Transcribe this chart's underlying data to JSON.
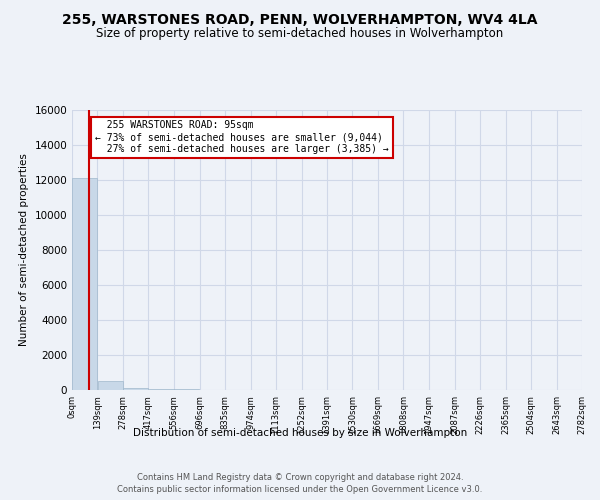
{
  "title": "255, WARSTONES ROAD, PENN, WOLVERHAMPTON, WV4 4LA",
  "subtitle": "Size of property relative to semi-detached houses in Wolverhampton",
  "xlabel_dist": "Distribution of semi-detached houses by size in Wolverhampton",
  "ylabel": "Number of semi-detached properties",
  "footer1": "Contains HM Land Registry data © Crown copyright and database right 2024.",
  "footer2": "Contains public sector information licensed under the Open Government Licence v3.0.",
  "bar_edges": [
    0,
    139,
    278,
    417,
    556,
    696,
    835,
    974,
    1113,
    1252,
    1391,
    1530,
    1669,
    1808,
    1947,
    2087,
    2226,
    2365,
    2504,
    2643,
    2782
  ],
  "bar_heights": [
    12100,
    500,
    90,
    50,
    30,
    20,
    15,
    10,
    8,
    6,
    5,
    4,
    3,
    2,
    2,
    1,
    1,
    1,
    1,
    1
  ],
  "bar_color": "#c8d8e8",
  "bar_edge_color": "#a0b8cc",
  "grid_color": "#d0d8e8",
  "background_color": "#eef2f8",
  "property_size": 95,
  "property_label": "255 WARSTONES ROAD: 95sqm",
  "pct_smaller": 73,
  "pct_smaller_n": 9044,
  "pct_larger": 27,
  "pct_larger_n": 3385,
  "red_line_color": "#cc0000",
  "annotation_box_color": "#cc0000",
  "ylim": [
    0,
    16000
  ],
  "yticks": [
    0,
    2000,
    4000,
    6000,
    8000,
    10000,
    12000,
    14000,
    16000
  ],
  "title_fontsize": 10,
  "subtitle_fontsize": 8.5,
  "footer_fontsize": 6.0,
  "tick_labels": [
    "0sqm",
    "139sqm",
    "278sqm",
    "417sqm",
    "556sqm",
    "696sqm",
    "835sqm",
    "974sqm",
    "1113sqm",
    "1252sqm",
    "1391sqm",
    "1530sqm",
    "1669sqm",
    "1808sqm",
    "1947sqm",
    "2087sqm",
    "2226sqm",
    "2365sqm",
    "2504sqm",
    "2643sqm",
    "2782sqm"
  ]
}
